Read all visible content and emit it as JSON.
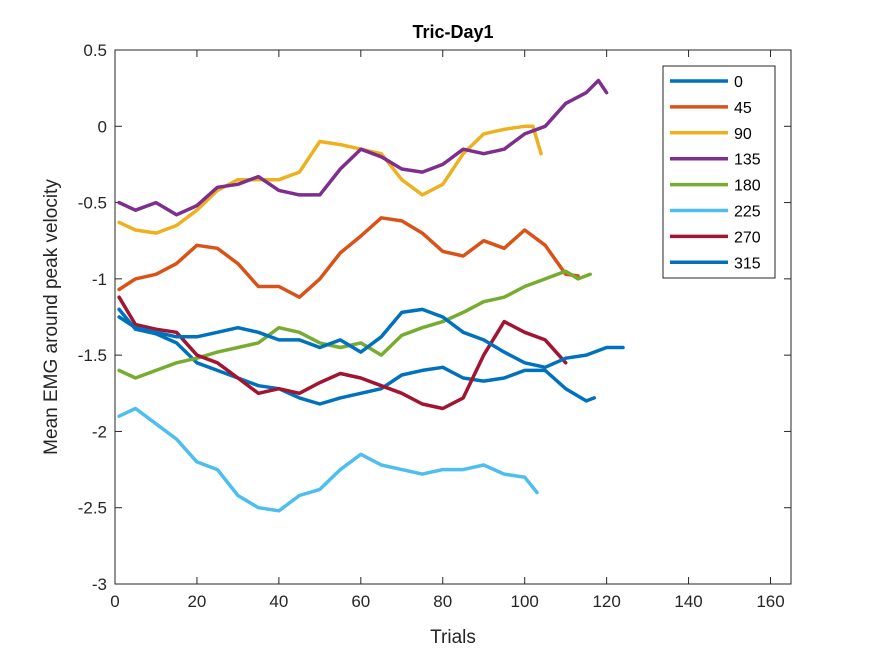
{
  "chart_data": {
    "type": "line",
    "title": "Tric-Day1",
    "xlabel": "Trials",
    "ylabel": "Mean EMG around peak velocity",
    "xlim": [
      0,
      165
    ],
    "ylim": [
      -3,
      0.5
    ],
    "xticks": [
      0,
      20,
      40,
      60,
      80,
      100,
      120,
      140,
      160
    ],
    "yticks": [
      -3,
      -2.5,
      -2,
      -1.5,
      -1,
      -0.5,
      0,
      0.5
    ],
    "xtick_labels": [
      "0",
      "20",
      "40",
      "60",
      "80",
      "100",
      "120",
      "140",
      "160"
    ],
    "ytick_labels": [
      "-3",
      "-2.5",
      "-2",
      "-1.5",
      "-1",
      "-0.5",
      "0",
      "0.5"
    ],
    "grid": false,
    "legend_position": "top-right",
    "series": [
      {
        "name": "0",
        "color": "#0072BD",
        "x": [
          1,
          5,
          10,
          15,
          20,
          25,
          30,
          35,
          40,
          45,
          50,
          55,
          60,
          65,
          70,
          75,
          80,
          85,
          90,
          95,
          100,
          105,
          110,
          115,
          117
        ],
        "y": [
          -1.2,
          -1.33,
          -1.36,
          -1.42,
          -1.55,
          -1.6,
          -1.65,
          -1.7,
          -1.72,
          -1.78,
          -1.82,
          -1.78,
          -1.75,
          -1.72,
          -1.63,
          -1.6,
          -1.58,
          -1.65,
          -1.67,
          -1.65,
          -1.6,
          -1.6,
          -1.72,
          -1.8,
          -1.78
        ]
      },
      {
        "name": "45",
        "color": "#D95319",
        "x": [
          1,
          5,
          10,
          15,
          20,
          25,
          30,
          35,
          40,
          45,
          50,
          55,
          60,
          65,
          70,
          75,
          80,
          85,
          90,
          95,
          100,
          105,
          110,
          113
        ],
        "y": [
          -1.07,
          -1.0,
          -0.97,
          -0.9,
          -0.78,
          -0.8,
          -0.9,
          -1.05,
          -1.05,
          -1.12,
          -1.0,
          -0.83,
          -0.72,
          -0.6,
          -0.62,
          -0.7,
          -0.82,
          -0.85,
          -0.75,
          -0.8,
          -0.68,
          -0.78,
          -0.97,
          -0.98
        ]
      },
      {
        "name": "90",
        "color": "#EDB120",
        "x": [
          1,
          5,
          10,
          15,
          20,
          25,
          30,
          35,
          40,
          45,
          50,
          55,
          60,
          65,
          70,
          75,
          80,
          85,
          90,
          95,
          100,
          102,
          104
        ],
        "y": [
          -0.63,
          -0.68,
          -0.7,
          -0.65,
          -0.55,
          -0.42,
          -0.35,
          -0.35,
          -0.35,
          -0.3,
          -0.1,
          -0.12,
          -0.15,
          -0.18,
          -0.35,
          -0.45,
          -0.38,
          -0.18,
          -0.05,
          -0.02,
          0.0,
          0.0,
          -0.18
        ]
      },
      {
        "name": "135",
        "color": "#7E2F8E",
        "x": [
          1,
          5,
          10,
          15,
          20,
          25,
          30,
          35,
          40,
          45,
          50,
          55,
          60,
          65,
          70,
          75,
          80,
          85,
          90,
          95,
          100,
          105,
          110,
          115,
          118,
          120
        ],
        "y": [
          -0.5,
          -0.55,
          -0.5,
          -0.58,
          -0.52,
          -0.4,
          -0.38,
          -0.33,
          -0.42,
          -0.45,
          -0.45,
          -0.28,
          -0.15,
          -0.2,
          -0.28,
          -0.3,
          -0.25,
          -0.15,
          -0.18,
          -0.15,
          -0.05,
          0.0,
          0.15,
          0.22,
          0.3,
          0.22
        ]
      },
      {
        "name": "180",
        "color": "#77AC30",
        "x": [
          1,
          5,
          10,
          15,
          20,
          25,
          30,
          35,
          40,
          45,
          50,
          55,
          60,
          65,
          70,
          75,
          80,
          85,
          90,
          95,
          100,
          105,
          110,
          113,
          116
        ],
        "y": [
          -1.6,
          -1.65,
          -1.6,
          -1.55,
          -1.52,
          -1.48,
          -1.45,
          -1.42,
          -1.32,
          -1.35,
          -1.42,
          -1.45,
          -1.42,
          -1.5,
          -1.37,
          -1.32,
          -1.28,
          -1.22,
          -1.15,
          -1.12,
          -1.05,
          -1.0,
          -0.95,
          -1.0,
          -0.97
        ]
      },
      {
        "name": "225",
        "color": "#4DBEEE",
        "x": [
          1,
          5,
          10,
          15,
          20,
          25,
          30,
          35,
          40,
          45,
          50,
          55,
          60,
          65,
          70,
          75,
          80,
          85,
          90,
          95,
          100,
          103
        ],
        "y": [
          -1.9,
          -1.85,
          -1.95,
          -2.05,
          -2.2,
          -2.25,
          -2.42,
          -2.5,
          -2.52,
          -2.42,
          -2.38,
          -2.25,
          -2.15,
          -2.22,
          -2.25,
          -2.28,
          -2.25,
          -2.25,
          -2.22,
          -2.28,
          -2.3,
          -2.4
        ]
      },
      {
        "name": "270",
        "color": "#A2142F",
        "x": [
          1,
          5,
          10,
          15,
          20,
          25,
          30,
          35,
          40,
          45,
          50,
          55,
          60,
          65,
          70,
          75,
          80,
          85,
          90,
          95,
          100,
          105,
          110
        ],
        "y": [
          -1.12,
          -1.3,
          -1.33,
          -1.35,
          -1.5,
          -1.55,
          -1.65,
          -1.75,
          -1.72,
          -1.75,
          -1.68,
          -1.62,
          -1.65,
          -1.7,
          -1.75,
          -1.82,
          -1.85,
          -1.78,
          -1.5,
          -1.28,
          -1.35,
          -1.4,
          -1.55
        ]
      },
      {
        "name": "315",
        "color": "#0072BD",
        "x": [
          1,
          5,
          10,
          15,
          20,
          25,
          30,
          35,
          40,
          45,
          50,
          55,
          60,
          65,
          70,
          75,
          80,
          85,
          90,
          95,
          100,
          105,
          110,
          115,
          120,
          124
        ],
        "y": [
          -1.25,
          -1.32,
          -1.35,
          -1.38,
          -1.38,
          -1.35,
          -1.32,
          -1.35,
          -1.4,
          -1.4,
          -1.45,
          -1.4,
          -1.48,
          -1.38,
          -1.22,
          -1.2,
          -1.25,
          -1.35,
          -1.4,
          -1.48,
          -1.55,
          -1.58,
          -1.52,
          -1.5,
          -1.45,
          -1.45
        ]
      }
    ]
  }
}
